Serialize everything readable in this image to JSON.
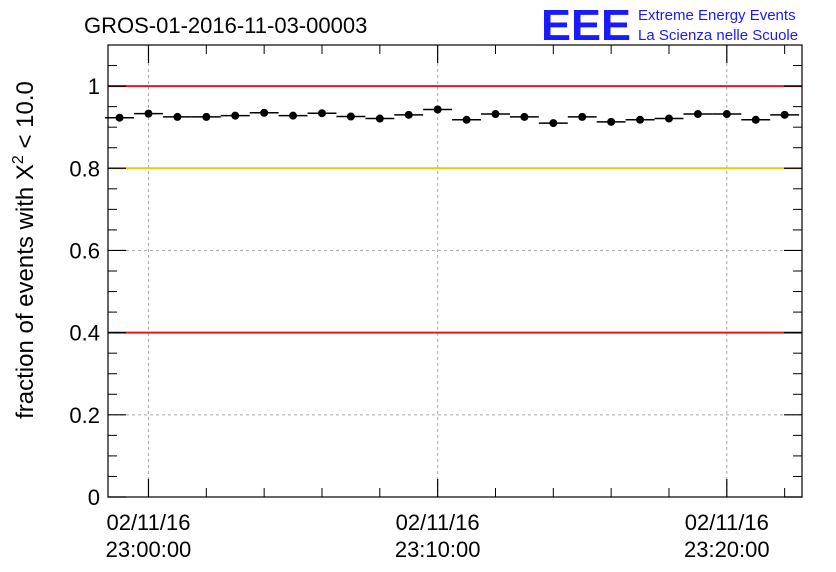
{
  "colors": {
    "frame": "#000000",
    "grid": "#aaaaaa",
    "red_line": "#e8151b",
    "yellow_line": "#f7c600",
    "marker": "#000000",
    "logo": "#1a1aff"
  },
  "logo": {
    "mark": "EEE",
    "line1": "Extreme Energy Events",
    "line2": "La Scienza nelle Scuole"
  },
  "chart_data": {
    "type": "scatter",
    "title": "GROS-01-2016-11-03-00003",
    "ylabel_prefix": "fraction of events with ",
    "ylabel_symbol": "X",
    "ylabel_superscript": "2",
    "ylabel_suffix": " < 10.0",
    "xlabel": "",
    "ylim": [
      0,
      1.1
    ],
    "xlim_minutes": [
      -1.4,
      22.6
    ],
    "grid": true,
    "y_ticks": [
      0,
      0.2,
      0.4,
      0.6,
      0.8,
      1
    ],
    "y_tick_labels": [
      "0",
      "0.2",
      "0.4",
      "0.6",
      "0.8",
      "1"
    ],
    "x_ticks_minutes": [
      0,
      10,
      20
    ],
    "x_tick_labels": [
      {
        "date": "02/11/16",
        "time": "23:00:00"
      },
      {
        "date": "02/11/16",
        "time": "23:10:00"
      },
      {
        "date": "02/11/16",
        "time": "23:20:00"
      }
    ],
    "reference_lines": [
      {
        "y": 1.0,
        "color": "red"
      },
      {
        "y": 0.8,
        "color": "yellow"
      },
      {
        "y": 0.4,
        "color": "red"
      }
    ],
    "bin_width_minutes": 1,
    "series": [
      {
        "x_minutes": [
          -1,
          0,
          1,
          2,
          3,
          4,
          5,
          6,
          7,
          8,
          9,
          10,
          11,
          12,
          13,
          14,
          15,
          16,
          17,
          18,
          19,
          20,
          21,
          22
        ],
        "values": [
          0.923,
          0.933,
          0.925,
          0.925,
          0.928,
          0.935,
          0.928,
          0.934,
          0.926,
          0.921,
          0.93,
          0.943,
          0.918,
          0.932,
          0.925,
          0.91,
          0.925,
          0.913,
          0.918,
          0.921,
          0.932,
          0.932,
          0.918,
          0.93
        ]
      }
    ]
  }
}
